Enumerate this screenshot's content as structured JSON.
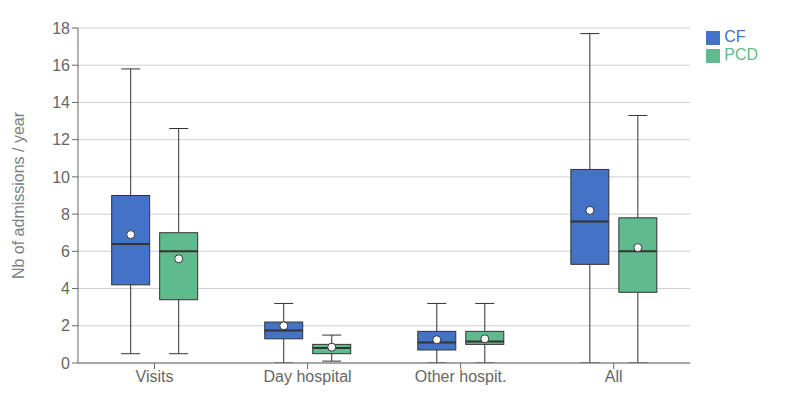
{
  "chart_data": {
    "type": "box",
    "ylabel": "Nb of admissions / year",
    "categories": [
      "Visits",
      "Day hospital",
      "Other hospit.",
      "All"
    ],
    "series": [
      {
        "name": "CF",
        "color": "#4472c4",
        "boxes": [
          {
            "whislo": 0.5,
            "q1": 4.2,
            "med": 6.4,
            "q3": 9.0,
            "whishi": 15.8,
            "mean": 6.9
          },
          {
            "whislo": 0.0,
            "q1": 1.3,
            "med": 1.75,
            "q3": 2.2,
            "whishi": 3.2,
            "mean": 2.0
          },
          {
            "whislo": 0.0,
            "q1": 0.7,
            "med": 1.1,
            "q3": 1.7,
            "whishi": 3.2,
            "mean": 1.25
          },
          {
            "whislo": 0.0,
            "q1": 5.3,
            "med": 7.6,
            "q3": 10.4,
            "whishi": 17.7,
            "mean": 8.2
          }
        ]
      },
      {
        "name": "PCD",
        "color": "#5fba8e",
        "boxes": [
          {
            "whislo": 0.5,
            "q1": 3.4,
            "med": 6.0,
            "q3": 7.0,
            "whishi": 12.6,
            "mean": 5.6
          },
          {
            "whislo": 0.1,
            "q1": 0.5,
            "med": 0.8,
            "q3": 1.0,
            "whishi": 1.5,
            "mean": 0.85
          },
          {
            "whislo": 0.0,
            "q1": 1.0,
            "med": 1.15,
            "q3": 1.7,
            "whishi": 3.2,
            "mean": 1.3
          },
          {
            "whislo": 0.0,
            "q1": 3.8,
            "med": 6.0,
            "q3": 7.8,
            "whishi": 13.3,
            "mean": 6.2
          }
        ]
      }
    ],
    "ylim": [
      0,
      18
    ],
    "yticks": [
      0,
      2,
      4,
      6,
      8,
      10,
      12,
      14,
      16,
      18
    ],
    "grid": true,
    "legend": "upper right"
  }
}
